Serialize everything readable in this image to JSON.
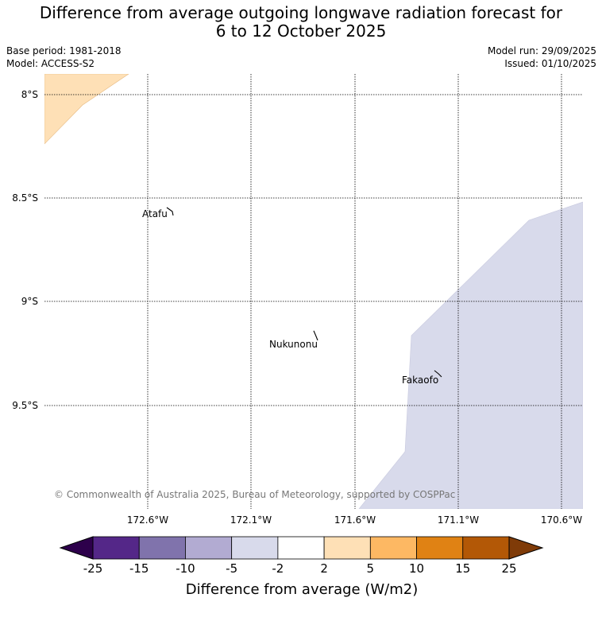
{
  "title": {
    "line1": "Difference from average outgoing longwave radiation forecast for",
    "line2": "6 to 12 October 2025"
  },
  "meta": {
    "base_period": "Base period: 1981-2018",
    "model": "Model: ACCESS-S2",
    "model_run": "Model run: 29/09/2025",
    "issued": "Issued: 01/10/2025"
  },
  "map": {
    "latitude_labels": [
      "8°S",
      "8.5°S",
      "9°S",
      "9.5°S"
    ],
    "longitude_labels": [
      "172.6°W",
      "172.1°W",
      "171.6°W",
      "171.1°W",
      "170.6°W"
    ],
    "places": [
      {
        "name": "Atafu"
      },
      {
        "name": "Nukunonu"
      },
      {
        "name": "Fakaofo"
      }
    ],
    "shaded_regions": [
      {
        "category": "2 to 5",
        "color": "#fee0b6"
      },
      {
        "category": "-5 to -2",
        "color": "#d8daeb"
      }
    ],
    "copyright": "© Commonwealth of Australia 2025, Bureau of Meteorology, supported by COSPPac"
  },
  "colorbar": {
    "ticks": [
      "-25",
      "-15",
      "-10",
      "-5",
      "-2",
      "2",
      "5",
      "10",
      "15",
      "25"
    ],
    "colors": [
      "#542788",
      "#8073ac",
      "#b2abd2",
      "#d8daeb",
      "#ffffff",
      "#fee0b6",
      "#fdb863",
      "#e08214",
      "#b35806"
    ],
    "under_color": "#2d004b",
    "over_color": "#7f3b08",
    "label": "Difference from average (W/m2)"
  }
}
